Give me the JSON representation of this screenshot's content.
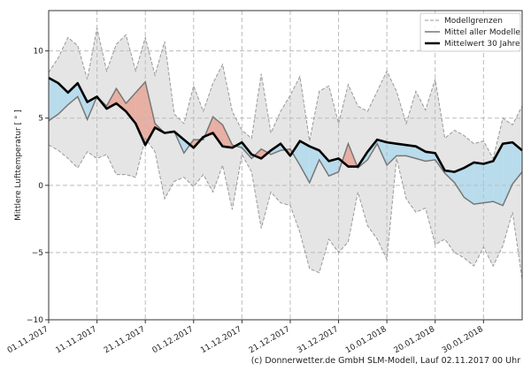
{
  "chart_data": {
    "type": "line",
    "title": "",
    "xlabel": "",
    "ylabel": "Mittlere Lufttemperatur [ ° ]",
    "ylim": [
      -10,
      13
    ],
    "xlim": [
      "01.11.2017",
      "07.02.2018"
    ],
    "yticks": [
      -10,
      -5,
      0,
      5,
      10
    ],
    "xticks": [
      "01.11.2017",
      "11.11.2017",
      "21.11.2017",
      "01.12.2017",
      "11.12.2017",
      "21.12.2017",
      "31.12.2017",
      "10.01.2018",
      "20.01.2018",
      "30.01.2018"
    ],
    "grid": true,
    "legend_position": "top-right",
    "x": [
      "01.11.2017",
      "03.11.2017",
      "05.11.2017",
      "07.11.2017",
      "09.11.2017",
      "11.11.2017",
      "13.11.2017",
      "15.11.2017",
      "17.11.2017",
      "19.11.2017",
      "21.11.2017",
      "23.11.2017",
      "25.11.2017",
      "27.11.2017",
      "29.11.2017",
      "01.12.2017",
      "03.12.2017",
      "05.12.2017",
      "07.12.2017",
      "09.12.2017",
      "11.12.2017",
      "13.12.2017",
      "15.12.2017",
      "17.12.2017",
      "19.12.2017",
      "21.12.2017",
      "23.12.2017",
      "25.12.2017",
      "27.12.2017",
      "29.12.2017",
      "31.12.2017",
      "02.01.2018",
      "04.01.2018",
      "06.01.2018",
      "08.01.2018",
      "10.01.2018",
      "12.01.2018",
      "14.01.2018",
      "16.01.2018",
      "18.01.2018",
      "20.01.2018",
      "22.01.2018",
      "24.01.2018",
      "26.01.2018",
      "28.01.2018",
      "30.01.2018",
      "01.02.2018",
      "03.02.2018",
      "05.02.2018",
      "07.02.2018"
    ],
    "series": [
      {
        "name": "Modellgrenzen",
        "role": "upper",
        "style": "dashed",
        "color": "#999999",
        "values": [
          8.4,
          9.5,
          11.0,
          10.4,
          7.9,
          11.7,
          8.5,
          10.5,
          11.2,
          8.5,
          11.0,
          8.2,
          10.7,
          5.3,
          4.6,
          7.4,
          5.5,
          7.6,
          9.0,
          5.5,
          4.1,
          3.5,
          8.3,
          3.9,
          5.5,
          6.7,
          8.1,
          3.3,
          7.0,
          7.4,
          4.6,
          7.5,
          5.9,
          5.5,
          7.0,
          8.5,
          7.0,
          4.6,
          7.0,
          5.6,
          7.9,
          3.5,
          4.1,
          3.7,
          3.1,
          3.3,
          2.0,
          5.0,
          4.5,
          5.9
        ]
      },
      {
        "name": "Modellgrenzen",
        "role": "lower",
        "style": "dashed",
        "color": "#999999",
        "values": [
          3.0,
          2.6,
          2.0,
          1.3,
          2.5,
          2.0,
          2.3,
          0.8,
          0.8,
          0.6,
          3.5,
          2.5,
          -1.0,
          0.3,
          0.6,
          -0.1,
          0.8,
          -0.5,
          1.5,
          -1.8,
          2.3,
          1.0,
          -3.2,
          -0.5,
          -1.3,
          -1.5,
          -3.5,
          -6.2,
          -6.5,
          -4.0,
          -5.0,
          -4.2,
          -0.5,
          -3.0,
          -4.0,
          -5.5,
          2.0,
          -1.0,
          -2.0,
          -1.7,
          -4.4,
          -4.0,
          -5.0,
          -5.4,
          -6.0,
          -4.6,
          -6.0,
          -4.5,
          -2.0,
          -7.0
        ]
      },
      {
        "name": "Mittel aller Modelle",
        "style": "solid",
        "color": "#777777",
        "values": [
          4.8,
          5.3,
          6.0,
          6.6,
          4.9,
          6.6,
          5.9,
          7.2,
          6.1,
          6.9,
          7.7,
          4.6,
          3.9,
          4.0,
          2.4,
          3.4,
          3.4,
          5.1,
          4.5,
          3.0,
          2.8,
          2.0,
          2.7,
          2.3,
          2.6,
          2.7,
          1.5,
          0.2,
          1.9,
          0.7,
          1.0,
          3.1,
          1.3,
          1.9,
          3.1,
          1.5,
          2.2,
          2.2,
          2.0,
          1.8,
          1.9,
          0.9,
          0.2,
          -0.9,
          -1.4,
          -1.3,
          -1.2,
          -1.5,
          0.1,
          1.0
        ]
      },
      {
        "name": "Mittelwert 30 Jahre",
        "style": "bold",
        "color": "#000000",
        "values": [
          8.0,
          7.6,
          6.9,
          7.6,
          6.2,
          6.6,
          5.7,
          6.1,
          5.5,
          4.6,
          3.0,
          4.3,
          3.9,
          4.0,
          3.4,
          2.8,
          3.6,
          3.9,
          2.9,
          2.8,
          3.2,
          2.3,
          2.0,
          2.6,
          3.1,
          2.2,
          3.3,
          2.9,
          2.6,
          1.8,
          2.0,
          1.4,
          1.4,
          2.5,
          3.4,
          3.2,
          3.1,
          3.0,
          2.9,
          2.5,
          2.4,
          1.1,
          1.0,
          1.3,
          1.7,
          1.6,
          1.8,
          3.1,
          3.2,
          2.6
        ]
      }
    ],
    "fill_colors": {
      "band": "#e5e5e5",
      "above_normal": "#e8afa3",
      "below_normal": "#b9dcec"
    },
    "legend": [
      "Modellgrenzen",
      "Mittel aller Modelle",
      "Mittelwert 30 Jahre"
    ]
  },
  "footer": "(c) Donnerwetter.de GmbH SLM-Modell, Lauf 02.11.2017 00 Uhr"
}
